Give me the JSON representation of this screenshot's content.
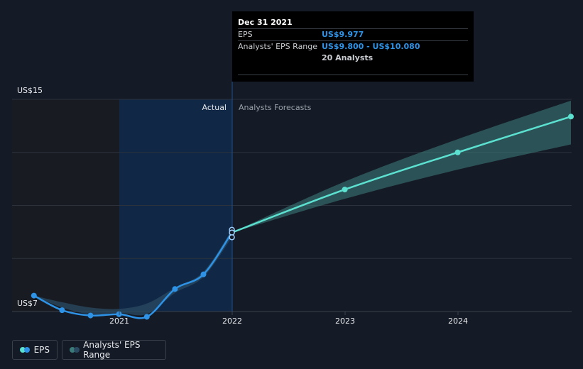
{
  "tooltip": {
    "date": "Dec 31 2021",
    "eps_label": "EPS",
    "eps_value": "US$9.977",
    "range_label": "Analysts' EPS Range",
    "range_value": "US$9.800 - US$10.080",
    "analysts": "20 Analysts"
  },
  "legend": {
    "eps_label": "EPS",
    "range_label": "Analysts' EPS Range"
  },
  "colors": {
    "background": "#151b26",
    "eps_line": "#2e93e6",
    "forecast_line": "#5ce1d0",
    "forecast_band": "#3a7a78",
    "past_band": "#2a4a62",
    "actual_highlight": "#0f2a4a",
    "pre_actual_shade": "#181c22"
  },
  "chart_data": {
    "type": "line",
    "y_axis_labels": [
      "US$15",
      "US$7"
    ],
    "ylim": [
      7,
      15
    ],
    "x_ticks": [
      "2021",
      "2022",
      "2023",
      "2024"
    ],
    "section_labels": {
      "actual": "Actual",
      "forecast": "Analysts Forecasts"
    },
    "grid": true,
    "series": [
      {
        "name": "EPS",
        "points": [
          {
            "x": "2020-03-31",
            "y": 7.6
          },
          {
            "x": "2020-06-30",
            "y": 7.05
          },
          {
            "x": "2020-09-30",
            "y": 6.85
          },
          {
            "x": "2020-12-31",
            "y": 6.9
          },
          {
            "x": "2021-03-31",
            "y": 6.8
          },
          {
            "x": "2021-06-30",
            "y": 7.85
          },
          {
            "x": "2021-09-30",
            "y": 8.4
          },
          {
            "x": "2021-12-31",
            "y": 9.977
          }
        ]
      },
      {
        "name": "Analysts' EPS Range",
        "points": [
          {
            "x": "2020-03-31",
            "low": 7.6,
            "high": 7.6
          },
          {
            "x": "2020-06-30",
            "low": 7.15,
            "high": 7.35
          },
          {
            "x": "2020-09-30",
            "low": 6.9,
            "high": 7.15
          },
          {
            "x": "2020-12-31",
            "low": 6.95,
            "high": 7.1
          },
          {
            "x": "2021-03-31",
            "low": 6.9,
            "high": 7.3
          },
          {
            "x": "2021-06-30",
            "low": 7.7,
            "high": 7.9
          },
          {
            "x": "2021-09-30",
            "low": 8.3,
            "high": 8.5
          },
          {
            "x": "2021-12-31",
            "low": 9.8,
            "high": 10.08
          }
        ]
      },
      {
        "name": "EPS Forecast",
        "points": [
          {
            "x": "2021-12-31",
            "y": 9.977
          },
          {
            "x": "2022-12-31",
            "y": 11.6
          },
          {
            "x": "2023-12-31",
            "y": 13.0
          },
          {
            "x": "2024-12-31",
            "y": 14.35
          }
        ],
        "range": [
          {
            "x": "2021-12-31",
            "low": 9.977,
            "high": 9.977
          },
          {
            "x": "2022-12-31",
            "low": 11.25,
            "high": 11.9
          },
          {
            "x": "2023-12-31",
            "low": 12.35,
            "high": 13.5
          },
          {
            "x": "2024-12-31",
            "low": 13.3,
            "high": 14.95
          }
        ]
      }
    ]
  }
}
